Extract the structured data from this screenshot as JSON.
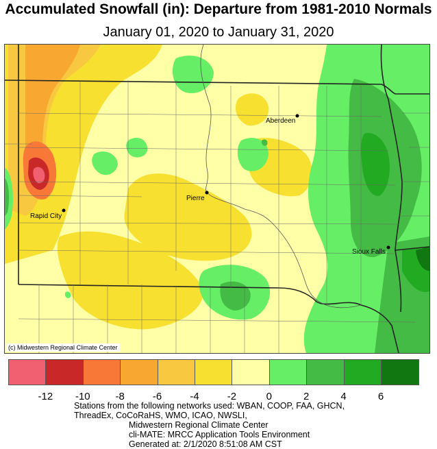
{
  "title": "Accumulated Snowfall (in): Departure from 1981-2010 Normals",
  "subtitle": "January 01, 2020 to January 31, 2020",
  "cities": [
    {
      "name": "Aberdeen"
    },
    {
      "name": "Pierre"
    },
    {
      "name": "Rapid City"
    },
    {
      "name": "Sioux Falls"
    }
  ],
  "credit": "(c) Midwestern Regional Climate Center",
  "legend": {
    "colors": [
      "#f06070",
      "#c82828",
      "#f87838",
      "#f8a830",
      "#f8c840",
      "#f8e030",
      "#ffffa8",
      "#66ee66",
      "#44bb44",
      "#22aa22",
      "#117711"
    ],
    "ticks": [
      "-12",
      "-10",
      "-8",
      "-6",
      "-4",
      "-2",
      "0",
      "2",
      "4",
      "6"
    ]
  },
  "footer": {
    "line1": "Stations from the following networks used: WBAN, COOP, FAA, GHCN,",
    "line2": "ThreadEx, CoCoRaHS, WMO, ICAO, NWSLI,",
    "line3": "Midwestern Regional Climate Center",
    "line4": "cli-MATE: MRCC Application Tools Environment",
    "line5": "Generated at: 2/1/2020 8:51:08 AM CST"
  }
}
